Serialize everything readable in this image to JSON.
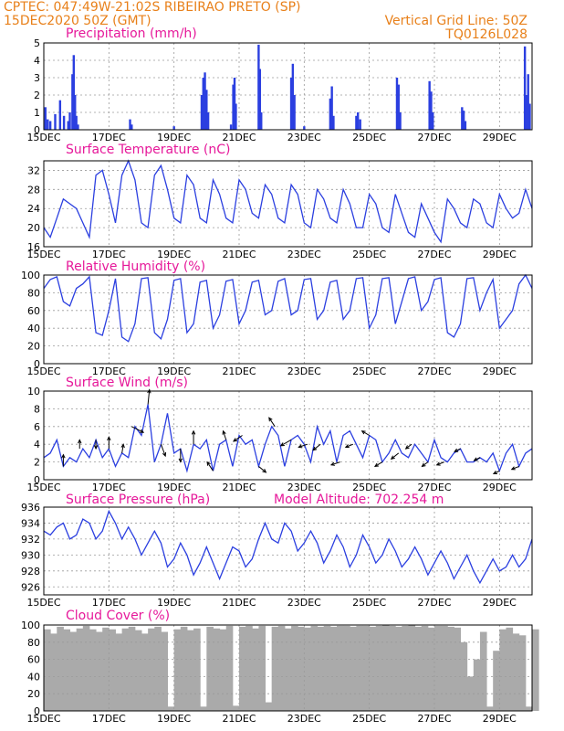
{
  "header": {
    "line1": "CPTEC:   047:49W-21:02S  RIBEIRAO PRETO (SP)",
    "line2": "15DEC2020 50Z (GMT)",
    "grid_note": "Vertical Grid Line: 50Z",
    "model_code": "TQ0126L028"
  },
  "colors": {
    "header": "#e8801a",
    "title": "#e6189a",
    "line": "#2b3fe0",
    "bar": "#2b3fe0",
    "cloud": "#aaaaaa",
    "grid": "#9a9a9a"
  },
  "chart_data": [
    {
      "id": "precip",
      "type": "bar",
      "title": "Precipitation (mm/h)",
      "ylim": [
        0,
        5
      ],
      "yticks": [
        0,
        1,
        2,
        3,
        4,
        5
      ],
      "x_range_days": [
        0,
        15
      ],
      "xticks": [
        "15DEC",
        "17DEC",
        "19DEC",
        "21DEC",
        "23DEC",
        "25DEC",
        "27DEC",
        "29DEC"
      ],
      "bars": [
        {
          "day": 0.05,
          "value": 1.3
        },
        {
          "day": 0.12,
          "value": 0.6
        },
        {
          "day": 0.2,
          "value": 0.5
        },
        {
          "day": 0.35,
          "value": 0.9
        },
        {
          "day": 0.5,
          "value": 1.7
        },
        {
          "day": 0.62,
          "value": 0.8
        },
        {
          "day": 0.75,
          "value": 0.5
        },
        {
          "day": 0.8,
          "value": 1.0
        },
        {
          "day": 0.88,
          "value": 3.2
        },
        {
          "day": 0.92,
          "value": 4.3
        },
        {
          "day": 0.96,
          "value": 2.0
        },
        {
          "day": 1.0,
          "value": 0.8
        },
        {
          "day": 1.05,
          "value": 0.3
        },
        {
          "day": 2.65,
          "value": 0.6
        },
        {
          "day": 2.7,
          "value": 0.3
        },
        {
          "day": 4.0,
          "value": 0.2
        },
        {
          "day": 4.85,
          "value": 2.0
        },
        {
          "day": 4.9,
          "value": 3.0
        },
        {
          "day": 4.95,
          "value": 3.3
        },
        {
          "day": 5.0,
          "value": 2.3
        },
        {
          "day": 5.05,
          "value": 1.0
        },
        {
          "day": 5.75,
          "value": 0.3
        },
        {
          "day": 5.82,
          "value": 2.6
        },
        {
          "day": 5.86,
          "value": 3.0
        },
        {
          "day": 5.9,
          "value": 1.5
        },
        {
          "day": 6.6,
          "value": 4.9
        },
        {
          "day": 6.64,
          "value": 3.5
        },
        {
          "day": 6.68,
          "value": 1.0
        },
        {
          "day": 7.6,
          "value": 3.0
        },
        {
          "day": 7.65,
          "value": 3.8
        },
        {
          "day": 7.7,
          "value": 2.0
        },
        {
          "day": 8.0,
          "value": 0.2
        },
        {
          "day": 8.8,
          "value": 1.8
        },
        {
          "day": 8.85,
          "value": 2.5
        },
        {
          "day": 8.9,
          "value": 0.8
        },
        {
          "day": 9.6,
          "value": 0.8
        },
        {
          "day": 9.65,
          "value": 1.0
        },
        {
          "day": 9.72,
          "value": 0.6
        },
        {
          "day": 10.85,
          "value": 3.0
        },
        {
          "day": 10.9,
          "value": 2.6
        },
        {
          "day": 10.95,
          "value": 1.0
        },
        {
          "day": 11.85,
          "value": 2.8
        },
        {
          "day": 11.9,
          "value": 2.2
        },
        {
          "day": 11.95,
          "value": 1.0
        },
        {
          "day": 12.85,
          "value": 1.3
        },
        {
          "day": 12.9,
          "value": 1.1
        },
        {
          "day": 12.95,
          "value": 0.5
        },
        {
          "day": 14.78,
          "value": 4.8
        },
        {
          "day": 14.82,
          "value": 2.0
        },
        {
          "day": 14.88,
          "value": 3.2
        },
        {
          "day": 14.93,
          "value": 1.5
        }
      ]
    },
    {
      "id": "temp",
      "type": "line",
      "title": "Surface Temperature (nC)",
      "ylim": [
        16,
        34
      ],
      "yticks": [
        16,
        20,
        24,
        28,
        32
      ],
      "x_range_days": [
        0,
        15
      ],
      "xticks": [
        "15DEC",
        "17DEC",
        "19DEC",
        "21DEC",
        "23DEC",
        "25DEC",
        "27DEC",
        "29DEC"
      ],
      "x": [
        0,
        0.2,
        0.4,
        0.6,
        0.8,
        1.0,
        1.2,
        1.4,
        1.6,
        1.8,
        2.0,
        2.2,
        2.4,
        2.6,
        2.8,
        3.0,
        3.2,
        3.4,
        3.6,
        3.8,
        4.0,
        4.2,
        4.4,
        4.6,
        4.8,
        5.0,
        5.2,
        5.4,
        5.6,
        5.8,
        6.0,
        6.2,
        6.4,
        6.6,
        6.8,
        7.0,
        7.2,
        7.4,
        7.6,
        7.8,
        8.0,
        8.2,
        8.4,
        8.6,
        8.8,
        9.0,
        9.2,
        9.4,
        9.6,
        9.8,
        10.0,
        10.2,
        10.4,
        10.6,
        10.8,
        11.0,
        11.2,
        11.4,
        11.6,
        11.8,
        12.0,
        12.2,
        12.4,
        12.6,
        12.8,
        13.0,
        13.2,
        13.4,
        13.6,
        13.8,
        14.0,
        14.2,
        14.4,
        14.6,
        14.8,
        15.0
      ],
      "y": [
        20,
        18,
        22,
        26,
        25,
        24,
        21,
        18,
        31,
        32,
        27,
        21,
        31,
        34,
        30,
        21,
        20,
        31,
        33,
        28,
        22,
        21,
        31,
        29,
        22,
        21,
        30,
        27,
        22,
        21,
        30,
        28,
        23,
        22,
        29,
        27,
        22,
        21,
        29,
        27,
        21,
        20,
        28,
        26,
        22,
        21,
        28,
        25,
        20,
        20,
        27,
        25,
        20,
        19,
        27,
        23,
        19,
        18,
        25,
        22,
        19,
        17,
        26,
        24,
        21,
        20,
        26,
        25,
        21,
        20,
        27,
        24,
        22,
        23,
        28,
        24
      ]
    },
    {
      "id": "rh",
      "type": "line",
      "title": "Relative Humidity (%)",
      "ylim": [
        0,
        100
      ],
      "yticks": [
        0,
        20,
        40,
        60,
        80,
        100
      ],
      "x_range_days": [
        0,
        15
      ],
      "xticks": [
        "15DEC",
        "17DEC",
        "19DEC",
        "21DEC",
        "23DEC",
        "25DEC",
        "27DEC",
        "29DEC"
      ],
      "x": [
        0,
        0.2,
        0.4,
        0.6,
        0.8,
        1.0,
        1.2,
        1.4,
        1.6,
        1.8,
        2.0,
        2.2,
        2.4,
        2.6,
        2.8,
        3.0,
        3.2,
        3.4,
        3.6,
        3.8,
        4.0,
        4.2,
        4.4,
        4.6,
        4.8,
        5.0,
        5.2,
        5.4,
        5.6,
        5.8,
        6.0,
        6.2,
        6.4,
        6.6,
        6.8,
        7.0,
        7.2,
        7.4,
        7.6,
        7.8,
        8.0,
        8.2,
        8.4,
        8.6,
        8.8,
        9.0,
        9.2,
        9.4,
        9.6,
        9.8,
        10.0,
        10.2,
        10.4,
        10.6,
        10.8,
        11.0,
        11.2,
        11.4,
        11.6,
        11.8,
        12.0,
        12.2,
        12.4,
        12.6,
        12.8,
        13.0,
        13.2,
        13.4,
        13.6,
        13.8,
        14.0,
        14.2,
        14.4,
        14.6,
        14.8,
        15.0
      ],
      "y": [
        85,
        95,
        98,
        70,
        65,
        85,
        90,
        98,
        35,
        32,
        60,
        96,
        30,
        25,
        45,
        96,
        97,
        35,
        28,
        50,
        94,
        96,
        35,
        45,
        92,
        94,
        40,
        55,
        93,
        95,
        45,
        60,
        92,
        94,
        55,
        60,
        93,
        96,
        55,
        60,
        95,
        96,
        50,
        60,
        92,
        94,
        50,
        60,
        96,
        97,
        40,
        55,
        96,
        97,
        45,
        70,
        96,
        98,
        60,
        70,
        95,
        97,
        35,
        30,
        45,
        96,
        97,
        60,
        80,
        95,
        40,
        50,
        60,
        90,
        100,
        85
      ]
    },
    {
      "id": "wind",
      "type": "line",
      "title": "Surface Wind (m/s)",
      "ylim": [
        0,
        10
      ],
      "yticks": [
        0,
        2,
        4,
        6,
        8,
        10
      ],
      "x_range_days": [
        0,
        15
      ],
      "xticks": [
        "15DEC",
        "17DEC",
        "19DEC",
        "21DEC",
        "23DEC",
        "25DEC",
        "27DEC",
        "29DEC"
      ],
      "x": [
        0,
        0.2,
        0.4,
        0.6,
        0.8,
        1.0,
        1.2,
        1.4,
        1.6,
        1.8,
        2.0,
        2.2,
        2.4,
        2.6,
        2.8,
        3.0,
        3.2,
        3.4,
        3.6,
        3.8,
        4.0,
        4.2,
        4.4,
        4.6,
        4.8,
        5.0,
        5.2,
        5.4,
        5.6,
        5.8,
        6.0,
        6.2,
        6.4,
        6.6,
        6.8,
        7.0,
        7.2,
        7.4,
        7.6,
        7.8,
        8.0,
        8.2,
        8.4,
        8.6,
        8.8,
        9.0,
        9.2,
        9.4,
        9.6,
        9.8,
        10.0,
        10.2,
        10.4,
        10.6,
        10.8,
        11.0,
        11.2,
        11.4,
        11.6,
        11.8,
        12.0,
        12.2,
        12.4,
        12.6,
        12.8,
        13.0,
        13.2,
        13.4,
        13.6,
        13.8,
        14.0,
        14.2,
        14.4,
        14.6,
        14.8,
        15.0
      ],
      "y": [
        2.5,
        3.0,
        4.5,
        1.5,
        2.5,
        2.0,
        3.5,
        2.5,
        4.5,
        2.5,
        3.5,
        1.5,
        3.0,
        2.5,
        6.0,
        5.0,
        8.5,
        2.0,
        4.0,
        7.5,
        3.0,
        3.5,
        1.0,
        4.0,
        3.5,
        4.5,
        1.0,
        4.0,
        4.5,
        1.5,
        5.0,
        4.0,
        4.5,
        1.5,
        4.0,
        6.0,
        5.0,
        1.5,
        4.5,
        5.0,
        4.0,
        2.0,
        6.0,
        4.0,
        5.5,
        2.0,
        5.0,
        5.5,
        4.0,
        2.5,
        5.0,
        4.5,
        2.0,
        3.0,
        4.5,
        3.0,
        2.5,
        4.0,
        3.0,
        2.0,
        4.5,
        2.5,
        2.0,
        3.0,
        3.5,
        2.0,
        2.0,
        2.5,
        2.0,
        3.0,
        1.0,
        3.0,
        4.0,
        1.5,
        3.0,
        3.5
      ],
      "vectors": [
        {
          "day": 0.6,
          "u": 0.0,
          "v": 4.0
        },
        {
          "day": 1.1,
          "u": 0.0,
          "v": 3.0
        },
        {
          "day": 1.6,
          "u": 0.0,
          "v": -3.0
        },
        {
          "day": 2.0,
          "u": 0.0,
          "v": 4.0
        },
        {
          "day": 2.4,
          "u": 0.5,
          "v": 3.0
        },
        {
          "day": 2.7,
          "u": 4.0,
          "v": -2.0
        },
        {
          "day": 3.2,
          "u": 0.5,
          "v": 5.0
        },
        {
          "day": 3.6,
          "u": 1.5,
          "v": -4.0
        },
        {
          "day": 4.2,
          "u": 0.0,
          "v": -4.5
        },
        {
          "day": 4.6,
          "u": 0.0,
          "v": 4.5
        },
        {
          "day": 5.2,
          "u": -2.0,
          "v": 3.0
        },
        {
          "day": 5.6,
          "u": -1.0,
          "v": 3.0
        },
        {
          "day": 6.1,
          "u": -3.0,
          "v": -2.0
        },
        {
          "day": 6.6,
          "u": 2.5,
          "v": -2.0
        },
        {
          "day": 7.1,
          "u": -2.0,
          "v": 3.0
        },
        {
          "day": 7.6,
          "u": -3.5,
          "v": -2.0
        },
        {
          "day": 8.1,
          "u": -3.0,
          "v": -1.0
        },
        {
          "day": 8.5,
          "u": -2.5,
          "v": -2.0
        },
        {
          "day": 9.1,
          "u": -3.0,
          "v": -1.0
        },
        {
          "day": 9.5,
          "u": -2.5,
          "v": -1.0
        },
        {
          "day": 10.0,
          "u": -2.5,
          "v": 1.5
        },
        {
          "day": 10.4,
          "u": -2.5,
          "v": -1.5
        },
        {
          "day": 10.9,
          "u": -2.5,
          "v": -2.0
        },
        {
          "day": 11.3,
          "u": -2.0,
          "v": -1.5
        },
        {
          "day": 11.8,
          "u": -2.0,
          "v": -1.5
        },
        {
          "day": 12.3,
          "u": -2.5,
          "v": -1.0
        },
        {
          "day": 12.8,
          "u": -2.0,
          "v": -1.0
        },
        {
          "day": 13.4,
          "u": -2.0,
          "v": -1.0
        },
        {
          "day": 14.0,
          "u": -2.0,
          "v": -1.0
        },
        {
          "day": 14.6,
          "u": -2.5,
          "v": -1.0
        }
      ]
    },
    {
      "id": "pres",
      "type": "line",
      "title": "Surface Pressure (hPa)",
      "annotation": "Model Altitude: 702.254 m",
      "ylim": [
        925,
        936
      ],
      "yticks": [
        926,
        928,
        930,
        932,
        934,
        936
      ],
      "x_range_days": [
        0,
        15
      ],
      "xticks": [
        "15DEC",
        "17DEC",
        "19DEC",
        "21DEC",
        "23DEC",
        "25DEC",
        "27DEC",
        "29DEC"
      ],
      "x": [
        0,
        0.2,
        0.4,
        0.6,
        0.8,
        1.0,
        1.2,
        1.4,
        1.6,
        1.8,
        2.0,
        2.2,
        2.4,
        2.6,
        2.8,
        3.0,
        3.2,
        3.4,
        3.6,
        3.8,
        4.0,
        4.2,
        4.4,
        4.6,
        4.8,
        5.0,
        5.2,
        5.4,
        5.6,
        5.8,
        6.0,
        6.2,
        6.4,
        6.6,
        6.8,
        7.0,
        7.2,
        7.4,
        7.6,
        7.8,
        8.0,
        8.2,
        8.4,
        8.6,
        8.8,
        9.0,
        9.2,
        9.4,
        9.6,
        9.8,
        10.0,
        10.2,
        10.4,
        10.6,
        10.8,
        11.0,
        11.2,
        11.4,
        11.6,
        11.8,
        12.0,
        12.2,
        12.4,
        12.6,
        12.8,
        13.0,
        13.2,
        13.4,
        13.6,
        13.8,
        14.0,
        14.2,
        14.4,
        14.6,
        14.8,
        15.0
      ],
      "y": [
        933,
        932.5,
        933.5,
        934,
        932,
        932.5,
        934.5,
        934,
        932,
        933,
        935.5,
        934,
        932,
        933.5,
        932,
        930,
        931.5,
        933,
        931.5,
        928.5,
        929.5,
        931.5,
        930,
        927.5,
        929,
        931,
        929,
        927,
        929,
        931,
        930.5,
        928.5,
        929.5,
        932,
        934,
        932,
        931.5,
        934,
        933,
        930.5,
        931.5,
        933,
        931.5,
        929,
        930.5,
        932.5,
        931,
        928.5,
        930,
        932.5,
        931,
        929,
        930,
        932,
        930.5,
        928.5,
        929.5,
        931,
        929.5,
        927.5,
        929,
        930.5,
        929,
        927,
        928.5,
        930,
        928,
        926.5,
        928,
        929.5,
        928,
        928.5,
        930,
        928.5,
        929.5,
        932
      ]
    },
    {
      "id": "cloud",
      "type": "area",
      "title": "Cloud Cover (%)",
      "ylim": [
        0,
        100
      ],
      "yticks": [
        0,
        20,
        40,
        60,
        80,
        100
      ],
      "x_range_days": [
        0,
        15
      ],
      "xticks": [
        "15DEC",
        "17DEC",
        "19DEC",
        "21DEC",
        "23DEC",
        "25DEC",
        "27DEC",
        "29DEC"
      ],
      "x": [
        0,
        0.2,
        0.4,
        0.6,
        0.8,
        1.0,
        1.2,
        1.4,
        1.6,
        1.8,
        2.0,
        2.2,
        2.4,
        2.6,
        2.8,
        3.0,
        3.2,
        3.4,
        3.6,
        3.8,
        4.0,
        4.2,
        4.4,
        4.6,
        4.8,
        5.0,
        5.2,
        5.4,
        5.6,
        5.8,
        6.0,
        6.2,
        6.4,
        6.6,
        6.8,
        7.0,
        7.2,
        7.4,
        7.6,
        7.8,
        8.0,
        8.2,
        8.4,
        8.6,
        8.8,
        9.0,
        9.2,
        9.4,
        9.6,
        9.8,
        10.0,
        10.2,
        10.4,
        10.6,
        10.8,
        11.0,
        11.2,
        11.4,
        11.6,
        11.8,
        12.0,
        12.2,
        12.4,
        12.6,
        12.8,
        13.0,
        13.2,
        13.4,
        13.6,
        13.8,
        14.0,
        14.2,
        14.4,
        14.6,
        14.8,
        15.0
      ],
      "y": [
        95,
        90,
        98,
        95,
        92,
        96,
        99,
        95,
        92,
        97,
        95,
        90,
        96,
        98,
        94,
        90,
        96,
        98,
        92,
        5,
        95,
        98,
        94,
        96,
        5,
        98,
        96,
        95,
        99,
        6,
        98,
        99,
        96,
        99,
        10,
        98,
        99,
        96,
        99,
        98,
        97,
        99,
        98,
        99,
        98,
        99,
        99,
        98,
        99,
        99,
        98,
        99,
        100,
        99,
        98,
        99,
        100,
        98,
        99,
        97,
        99,
        99,
        98,
        97,
        80,
        40,
        60,
        92,
        5,
        70,
        95,
        97,
        90,
        88,
        5,
        95
      ]
    }
  ]
}
